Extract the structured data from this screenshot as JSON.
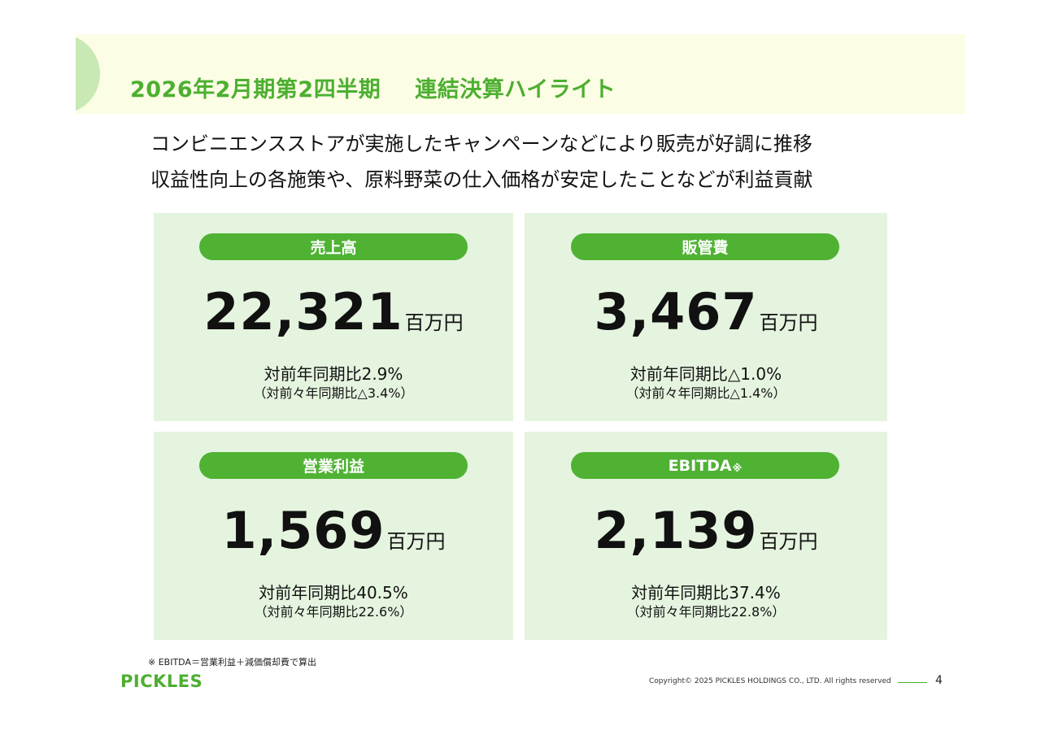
{
  "header": {
    "title_left": "2026年2月期第2四半期",
    "title_right": "連結決算ハイライト"
  },
  "lead": {
    "line1": "コンビニエンスストアが実施したキャンペーンなどにより販売が好調に推移",
    "line2": "収益性向上の各施策や、原料野菜の仕入価格が安定したことなどが利益貢献"
  },
  "cards": [
    {
      "label": "売上高",
      "label_mark": "",
      "value": "22,321",
      "unit": "百万円",
      "yoy": "対前年同期比2.9%",
      "yoy2": "（対前々年同期比△3.4%）"
    },
    {
      "label": "販管費",
      "label_mark": "",
      "value": "3,467",
      "unit": "百万円",
      "yoy": "対前年同期比△1.0%",
      "yoy2": "（対前々年同期比△1.4%）"
    },
    {
      "label": "営業利益",
      "label_mark": "",
      "value": "1,569",
      "unit": "百万円",
      "yoy": "対前年同期比40.5%",
      "yoy2": "（対前々年同期比22.6%）"
    },
    {
      "label": "EBITDA",
      "label_mark": "※",
      "value": "2,139",
      "unit": "百万円",
      "yoy": "対前年同期比37.4%",
      "yoy2": "（対前々年同期比22.8%）"
    }
  ],
  "footnote": "※ EBITDA＝営業利益＋減価償却費で算出",
  "footer": {
    "logo": "PICKLES",
    "copyright": "Copyright© 2025 PICKLES HOLDINGS CO., LTD. All rights reserved",
    "page_number": "4"
  },
  "colors": {
    "accent": "#4caf30",
    "label_bg": "#4fb233",
    "card_bg": "#e5f4df",
    "header_bg": "#fcfde5"
  }
}
